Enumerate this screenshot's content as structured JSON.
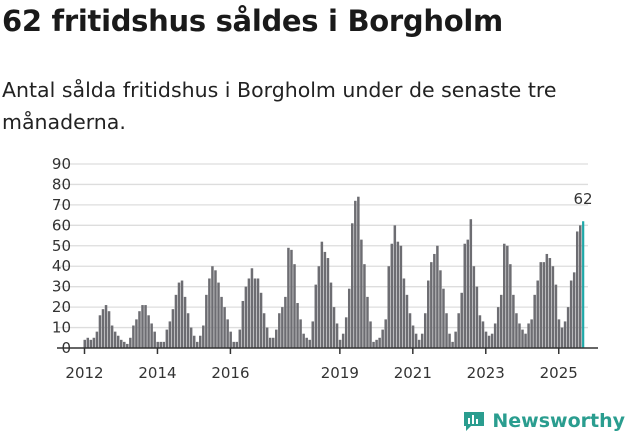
{
  "title": "62 fritidshus såldes i Borgholm",
  "subtitle": "Antal sålda fritidshus i Borgholm under de senaste tre månaderna.",
  "brand": "Newsworthy",
  "colors": {
    "bar": "#6d6d72",
    "highlight": "#1fa8a8",
    "brand": "#2a9d8f",
    "grid": "#dddddd"
  },
  "chart_data": {
    "type": "bar",
    "title": "62 fritidshus såldes i Borgholm",
    "xlabel": "",
    "ylabel": "",
    "ylim": [
      0,
      90
    ],
    "yticks": [
      "0",
      "10",
      "20",
      "30",
      "40",
      "50",
      "60",
      "70",
      "80",
      "90"
    ],
    "xticks": [
      {
        "label": "2012",
        "index": 0
      },
      {
        "label": "2014",
        "index": 24
      },
      {
        "label": "2016",
        "index": 48
      },
      {
        "label": "2019",
        "index": 84
      },
      {
        "label": "2021",
        "index": 108
      },
      {
        "label": "2023",
        "index": 132
      },
      {
        "label": "2025",
        "index": 156
      }
    ],
    "start": "2012-01",
    "frequency": "monthly",
    "highlight_label": "62",
    "values": [
      4,
      5,
      4,
      5,
      8,
      16,
      19,
      21,
      18,
      11,
      8,
      6,
      4,
      3,
      2,
      5,
      11,
      14,
      18,
      21,
      21,
      16,
      12,
      8,
      3,
      3,
      3,
      9,
      13,
      19,
      26,
      32,
      33,
      25,
      17,
      10,
      6,
      3,
      6,
      11,
      26,
      34,
      40,
      38,
      32,
      25,
      20,
      14,
      8,
      3,
      3,
      9,
      23,
      30,
      34,
      39,
      34,
      34,
      27,
      17,
      10,
      5,
      5,
      9,
      17,
      20,
      25,
      49,
      48,
      41,
      22,
      14,
      7,
      5,
      4,
      13,
      31,
      40,
      52,
      47,
      44,
      32,
      20,
      12,
      4,
      7,
      15,
      29,
      61,
      72,
      74,
      53,
      41,
      25,
      13,
      3,
      4,
      5,
      9,
      14,
      40,
      51,
      60,
      52,
      50,
      34,
      26,
      17,
      11,
      7,
      4,
      7,
      17,
      33,
      42,
      46,
      50,
      38,
      29,
      17,
      7,
      3,
      8,
      17,
      27,
      51,
      53,
      63,
      40,
      30,
      16,
      13,
      8,
      6,
      7,
      12,
      20,
      26,
      51,
      50,
      41,
      26,
      17,
      12,
      9,
      7,
      12,
      14,
      26,
      33,
      42,
      42,
      46,
      44,
      40,
      31,
      14,
      10,
      13,
      20,
      33,
      37,
      57,
      60,
      62
    ]
  }
}
